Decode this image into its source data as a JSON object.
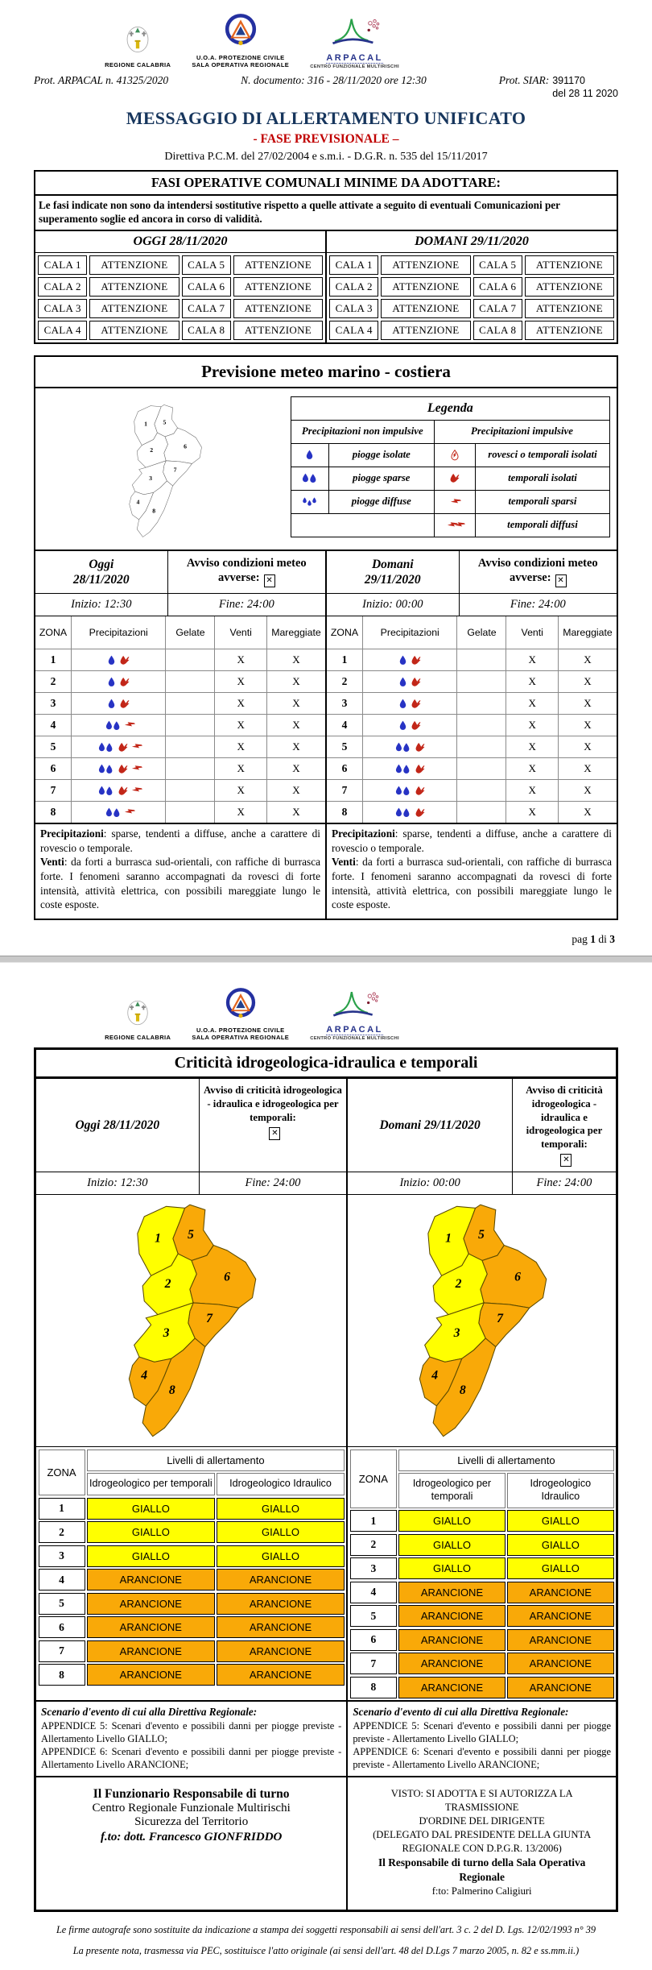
{
  "header": {
    "logos": {
      "regione_caption": "REGIONE CALABRIA",
      "pc_caption1": "U.O.A. PROTEZIONE CIVILE",
      "pc_caption2": "SALA OPERATIVA REGIONALE",
      "arpacal_word": "ARPACAL",
      "arpacal_caption": "CENTRO FUNZIONALE MULTIRISCHI"
    },
    "prot_arpacal": "Prot. ARPACAL n. 41325/2020",
    "n_documento": "N. documento: 316 - 28/11/2020 ore 12:30",
    "prot_siar_label": "Prot. SIAR:",
    "prot_siar_value": "391170",
    "prot_siar_date": "del 28 11 2020",
    "title": "MESSAGGIO DI ALLERTAMENTO UNIFICATO",
    "subtitle": "- FASE PREVISIONALE –",
    "directive": "Direttiva P.C.M. del 27/02/2004 e s.m.i. - D.G.R. n. 535 del 15/11/2017"
  },
  "fasi": {
    "header": "FASI OPERATIVE COMUNALI MINIME DA ADOTTARE:",
    "note": "Le fasi indicate non sono da intendersi sostitutive rispetto a quelle attivate a seguito di eventuali Comunicazioni per superamento soglie ed ancora in corso di validità.",
    "days": [
      {
        "label": "OGGI 28/11/2020",
        "rows": [
          [
            "CALA 1",
            "ATTENZIONE",
            "CALA 5",
            "ATTENZIONE"
          ],
          [
            "CALA 2",
            "ATTENZIONE",
            "CALA 6",
            "ATTENZIONE"
          ],
          [
            "CALA 3",
            "ATTENZIONE",
            "CALA 7",
            "ATTENZIONE"
          ],
          [
            "CALA 4",
            "ATTENZIONE",
            "CALA 8",
            "ATTENZIONE"
          ]
        ]
      },
      {
        "label": "DOMANI 29/11/2020",
        "rows": [
          [
            "CALA 1",
            "ATTENZIONE",
            "CALA 5",
            "ATTENZIONE"
          ],
          [
            "CALA 2",
            "ATTENZIONE",
            "CALA 6",
            "ATTENZIONE"
          ],
          [
            "CALA 3",
            "ATTENZIONE",
            "CALA 7",
            "ATTENZIONE"
          ],
          [
            "CALA 4",
            "ATTENZIONE",
            "CALA 8",
            "ATTENZIONE"
          ]
        ]
      }
    ]
  },
  "meteo": {
    "title": "Previsione meteo marino - costiera",
    "zones": [
      "1",
      "2",
      "3",
      "4",
      "5",
      "6",
      "7",
      "8"
    ],
    "legend": {
      "title": "Legenda",
      "col_left": "Precipitazioni non impulsive",
      "col_right": "Precipitazioni impulsive",
      "left_rows": [
        {
          "icon": "rain-isolated",
          "label": "piogge isolate"
        },
        {
          "icon": "rain-scattered",
          "label": "piogge sparse"
        },
        {
          "icon": "rain-widespread",
          "label": "piogge diffuse"
        }
      ],
      "right_rows": [
        {
          "icon": "shower-isolated",
          "label": "rovesci o temporali isolati"
        },
        {
          "icon": "storm-isolated",
          "label": "temporali isolati"
        },
        {
          "icon": "storm-scattered",
          "label": "temporali sparsi"
        },
        {
          "icon": "storm-widespread",
          "label": "temporali diffusi"
        }
      ]
    },
    "columns": [
      "ZONA",
      "Precipitazioni",
      "Gelate",
      "Venti",
      "Mareggiate"
    ],
    "days": [
      {
        "name": "Oggi",
        "date": "28/11/2020",
        "avviso_label": "Avviso condizioni meteo avverse:",
        "avviso_checked": true,
        "inizio": "Inizio: 12:30",
        "fine": "Fine: 24:00",
        "rows": [
          {
            "zona": "1",
            "precipitazioni": [
              "rain-isolated",
              "storm-isolated"
            ],
            "gelate": "",
            "venti": "X",
            "mareggiate": "X"
          },
          {
            "zona": "2",
            "precipitazioni": [
              "rain-isolated",
              "storm-isolated"
            ],
            "gelate": "",
            "venti": "X",
            "mareggiate": "X"
          },
          {
            "zona": "3",
            "precipitazioni": [
              "rain-isolated",
              "storm-isolated"
            ],
            "gelate": "",
            "venti": "X",
            "mareggiate": "X"
          },
          {
            "zona": "4",
            "precipitazioni": [
              "rain-scattered",
              "storm-scattered"
            ],
            "gelate": "",
            "venti": "X",
            "mareggiate": "X"
          },
          {
            "zona": "5",
            "precipitazioni": [
              "rain-scattered",
              "storm-isolated",
              "storm-scattered"
            ],
            "gelate": "",
            "venti": "X",
            "mareggiate": "X"
          },
          {
            "zona": "6",
            "precipitazioni": [
              "rain-scattered",
              "storm-isolated",
              "storm-scattered"
            ],
            "gelate": "",
            "venti": "X",
            "mareggiate": "X"
          },
          {
            "zona": "7",
            "precipitazioni": [
              "rain-scattered",
              "storm-isolated",
              "storm-scattered"
            ],
            "gelate": "",
            "venti": "X",
            "mareggiate": "X"
          },
          {
            "zona": "8",
            "precipitazioni": [
              "rain-scattered",
              "storm-scattered"
            ],
            "gelate": "",
            "venti": "X",
            "mareggiate": "X"
          }
        ],
        "precipitazioni_label": "Precipitazioni",
        "precipitazioni_text": ": sparse, tendenti a diffuse, anche a carattere di rovescio o temporale.",
        "venti_label": "Venti",
        "venti_text": ": da forti a burrasca sud-orientali, con raffiche di burrasca forte. I fenomeni saranno accompagnati da rovesci di forte intensità, attività elettrica, con possibili mareggiate lungo le coste esposte."
      },
      {
        "name": "Domani",
        "date": "29/11/2020",
        "avviso_label": "Avviso condizioni meteo avverse:",
        "avviso_checked": true,
        "inizio": "Inizio: 00:00",
        "fine": "Fine: 24:00",
        "rows": [
          {
            "zona": "1",
            "precipitazioni": [
              "rain-isolated",
              "storm-isolated"
            ],
            "gelate": "",
            "venti": "X",
            "mareggiate": "X"
          },
          {
            "zona": "2",
            "precipitazioni": [
              "rain-isolated",
              "storm-isolated"
            ],
            "gelate": "",
            "venti": "X",
            "mareggiate": "X"
          },
          {
            "zona": "3",
            "precipitazioni": [
              "rain-isolated",
              "storm-isolated"
            ],
            "gelate": "",
            "venti": "X",
            "mareggiate": "X"
          },
          {
            "zona": "4",
            "precipitazioni": [
              "rain-isolated",
              "storm-isolated"
            ],
            "gelate": "",
            "venti": "X",
            "mareggiate": "X"
          },
          {
            "zona": "5",
            "precipitazioni": [
              "rain-scattered",
              "storm-isolated"
            ],
            "gelate": "",
            "venti": "X",
            "mareggiate": "X"
          },
          {
            "zona": "6",
            "precipitazioni": [
              "rain-scattered",
              "storm-isolated"
            ],
            "gelate": "",
            "venti": "X",
            "mareggiate": "X"
          },
          {
            "zona": "7",
            "precipitazioni": [
              "rain-scattered",
              "storm-isolated"
            ],
            "gelate": "",
            "venti": "X",
            "mareggiate": "X"
          },
          {
            "zona": "8",
            "precipitazioni": [
              "rain-scattered",
              "storm-isolated"
            ],
            "gelate": "",
            "venti": "X",
            "mareggiate": "X"
          }
        ],
        "precipitazioni_label": "Precipitazioni",
        "precipitazioni_text": ": sparse, tendenti a diffuse, anche a carattere di rovescio o temporale.",
        "venti_label": "Venti",
        "venti_text": ": da forti a burrasca sud-orientali, con raffiche di burrasca forte. I fenomeni saranno accompagnati da rovesci di forte intensità, attività elettrica, con possibili mareggiate lungo le coste esposte."
      }
    ]
  },
  "pagination": {
    "prefix": "pag",
    "page": "1",
    "of": "di",
    "total": "3"
  },
  "criticita": {
    "title": "Criticità idrogeologica-idraulica e temporali",
    "avviso_label": "Avviso di criticità idrogeologica - idraulica e idrogeologica per temporali:",
    "days": [
      {
        "label": "Oggi 28/11/2020",
        "inizio": "Inizio: 12:30",
        "fine": "Fine: 24:00",
        "avviso_checked": true
      },
      {
        "label": "Domani 29/11/2020",
        "inizio": "Inizio: 00:00",
        "fine": "Fine: 24:00",
        "avviso_checked": true
      }
    ],
    "zone_levels": {
      "1": "giallo",
      "2": "giallo",
      "3": "giallo",
      "4": "arancione",
      "5": "arancione",
      "6": "arancione",
      "7": "arancione",
      "8": "arancione"
    },
    "level_colors": {
      "giallo": "#FFFF00",
      "arancione": "#F9A908"
    },
    "alert_table": {
      "zona_label": "ZONA",
      "group_label": "Livelli di allertamento",
      "col_temporali": "Idrogeologico per temporali",
      "col_idraulico": "Idrogeologico Idraulico",
      "rows": [
        {
          "zona": "1",
          "temporali": "GIALLO",
          "idraulico": "GIALLO"
        },
        {
          "zona": "2",
          "temporali": "GIALLO",
          "idraulico": "GIALLO"
        },
        {
          "zona": "3",
          "temporali": "GIALLO",
          "idraulico": "GIALLO"
        },
        {
          "zona": "4",
          "temporali": "ARANCIONE",
          "idraulico": "ARANCIONE"
        },
        {
          "zona": "5",
          "temporali": "ARANCIONE",
          "idraulico": "ARANCIONE"
        },
        {
          "zona": "6",
          "temporali": "ARANCIONE",
          "idraulico": "ARANCIONE"
        },
        {
          "zona": "7",
          "temporali": "ARANCIONE",
          "idraulico": "ARANCIONE"
        },
        {
          "zona": "8",
          "temporali": "ARANCIONE",
          "idraulico": "ARANCIONE"
        }
      ]
    },
    "scenario": {
      "title": "Scenario d'evento di cui alla Direttiva Regionale:",
      "lines": [
        "APPENDICE 5: Scenari d'evento e possibili danni per piogge previste - Allertamento Livello GIALLO;",
        "APPENDICE 6: Scenari d'evento e possibili danni per piogge previste - Allertamento Livello ARANCIONE;"
      ]
    },
    "signature_left": [
      "Il Funzionario Responsabile di turno",
      "Centro Regionale Funzionale Multirischi",
      "Sicurezza del Territorio",
      "f.to: dott. Francesco GIONFRIDDO"
    ],
    "signature_right": [
      "VISTO: SI ADOTTA E SI AUTORIZZA LA TRASMISSIONE",
      "D'ORDINE DEL DIRIGENTE",
      "(DELEGATO DAL PRESIDENTE DELLA GIUNTA",
      "REGIONALE CON D.P.G.R. 13/2006)",
      "Il Responsabile di turno della Sala Operativa Regionale",
      "f:to: Palmerino Caligiuri"
    ]
  },
  "doc_footer": [
    "Le firme autografe sono sostituite da indicazione a stampa dei soggetti responsabili ai sensi dell'art. 3 c. 2 del D. Lgs. 12/02/1993 n° 39",
    "La presente nota, trasmessa via PEC, sostituisce l'atto originale (ai sensi dell'art. 48 del D.Lgs 7 marzo 2005, n. 82 e ss.mm.ii.)"
  ]
}
